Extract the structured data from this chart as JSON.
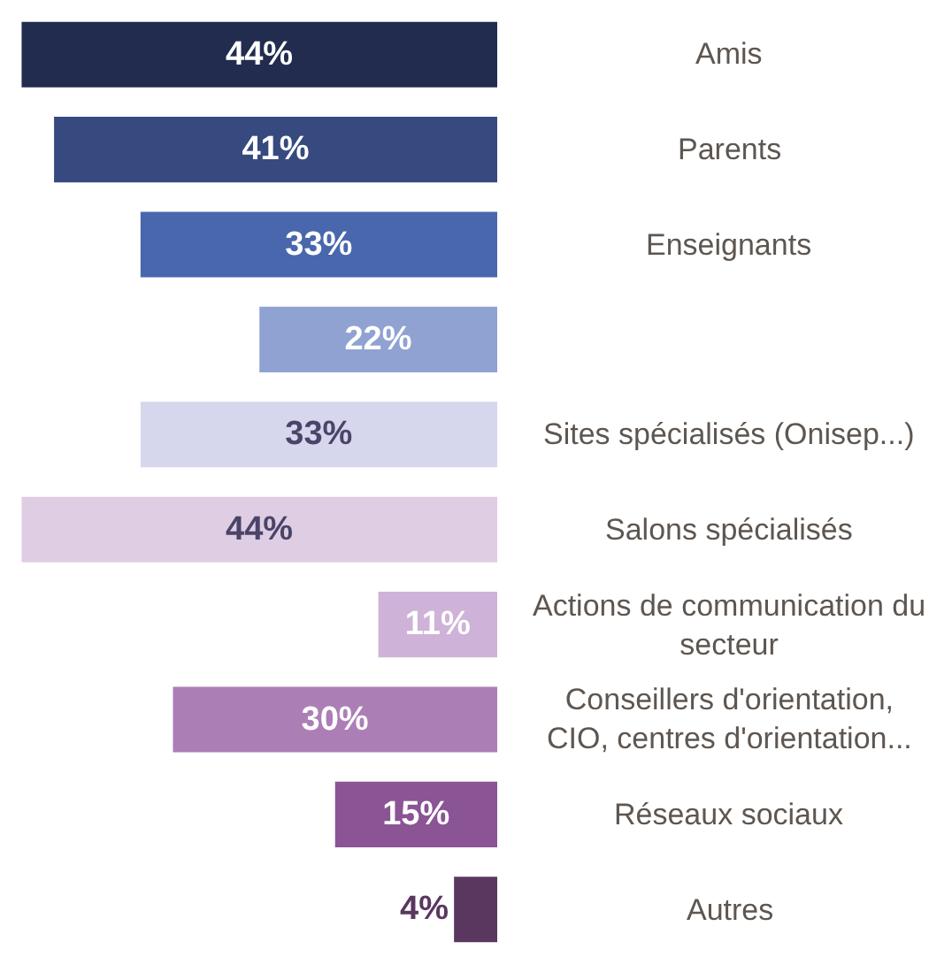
{
  "chart_data": {
    "type": "bar",
    "orientation": "horizontal",
    "categories": [
      "Amis",
      "Parents",
      "Enseignants",
      null,
      "Sites spécialisés (Onisep...)",
      "Salons spécialisés",
      "Actions de communication du secteur",
      "Conseillers d'orientation, CIO, centres d'orientation...",
      "Réseaux sociaux",
      "Autres"
    ],
    "values": [
      44,
      41,
      33,
      22,
      33,
      44,
      11,
      30,
      15,
      4
    ],
    "value_labels": [
      "44%",
      "41%",
      "33%",
      "22%",
      "33%",
      "44%",
      "11%",
      "30%",
      "15%",
      "4%"
    ],
    "colors": [
      "#212c4e",
      "#364a7f",
      "#4967ad",
      "#8fa2d2",
      "#d6d6ec",
      "#dfcde3",
      "#cfb2d7",
      "#ac7eb6",
      "#8a5495",
      "#5a375f"
    ],
    "xlim": [
      46,
      0
    ],
    "tick_labels": "y"
  }
}
